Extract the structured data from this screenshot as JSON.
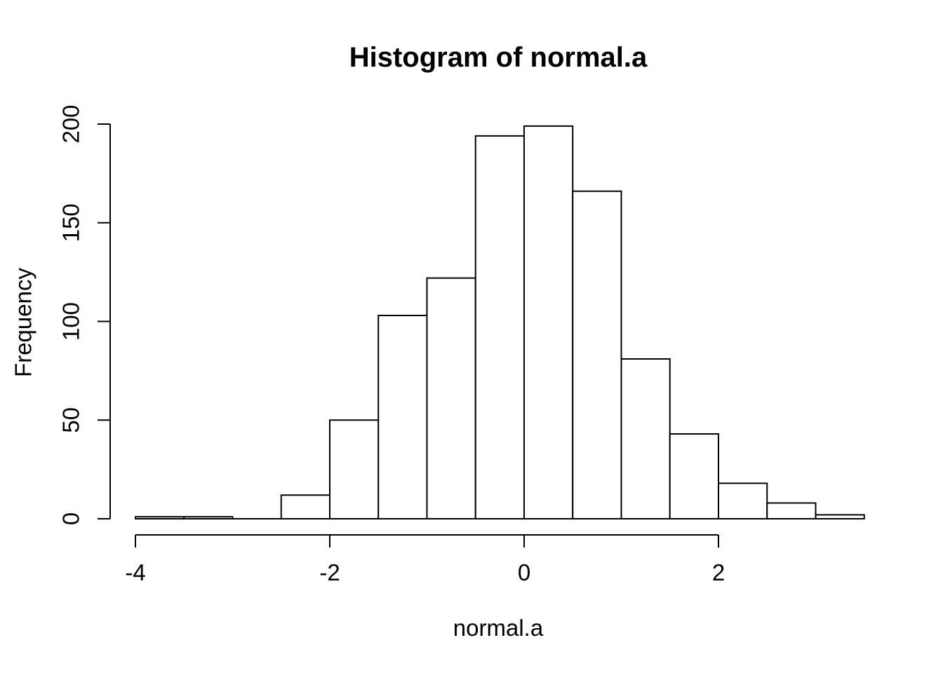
{
  "chart_data": {
    "type": "bar",
    "subtype": "histogram",
    "title": "Histogram of normal.a",
    "xlabel": "normal.a",
    "ylabel": "Frequency",
    "bin_start": -4,
    "bin_width": 0.5,
    "bin_edges": [
      -4,
      -3.5,
      -3,
      -2.5,
      -2,
      -1.5,
      -1,
      -0.5,
      0,
      0.5,
      1,
      1.5,
      2,
      2.5,
      3,
      3.5
    ],
    "values": [
      1,
      1,
      0,
      12,
      50,
      103,
      122,
      194,
      199,
      166,
      81,
      43,
      18,
      8,
      2
    ],
    "x_ticks": [
      -4,
      -2,
      0,
      2
    ],
    "y_ticks": [
      0,
      50,
      100,
      150,
      200
    ],
    "xlim": [
      -4,
      3.5
    ],
    "ylim": [
      0,
      200
    ],
    "grid": false,
    "legend": false,
    "bar_fill": "#ffffff",
    "bar_stroke": "#000000",
    "axis_color": "#000000",
    "text_color": "#000000",
    "background": "#ffffff"
  }
}
